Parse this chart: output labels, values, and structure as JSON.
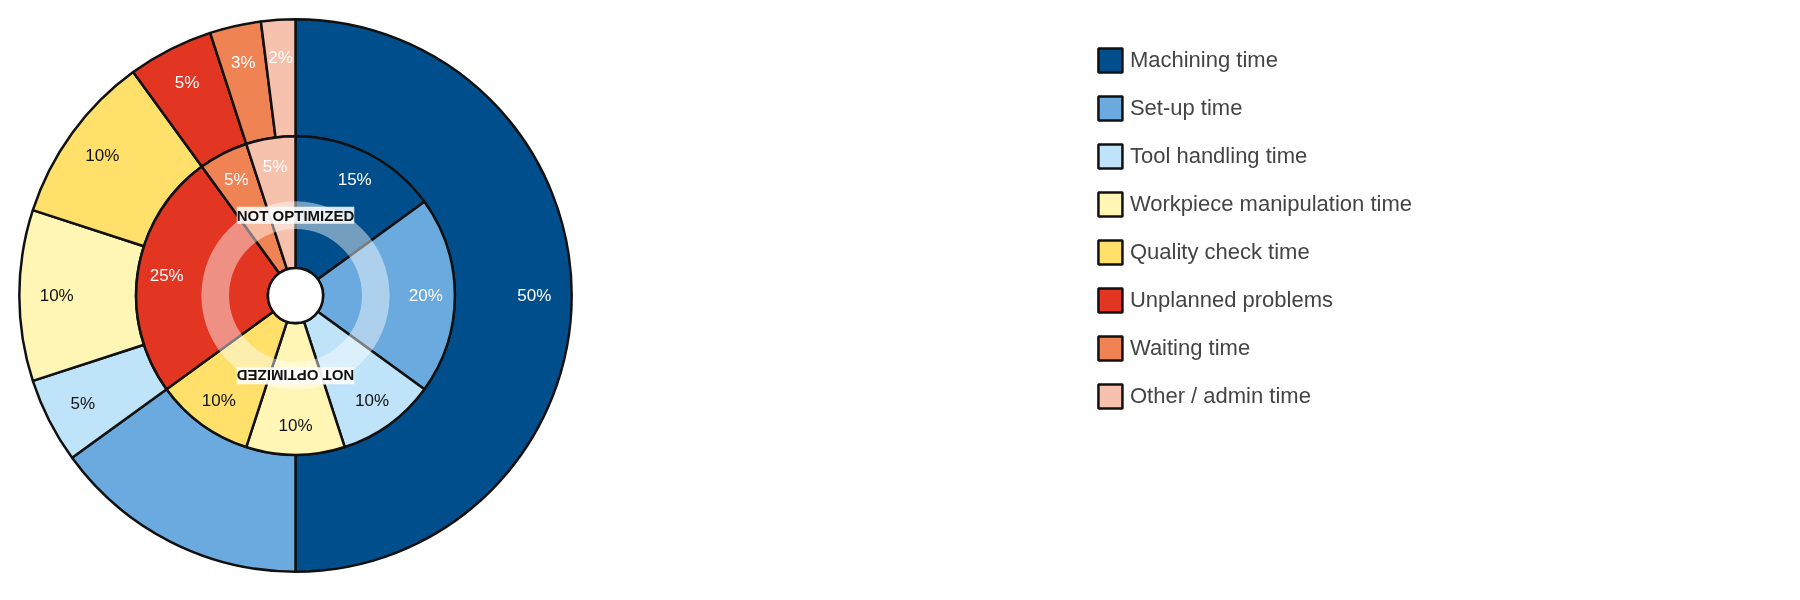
{
  "chart_data": {
    "type": "donut",
    "categories": [
      "Machining time",
      "Set-up time",
      "Tool handling time",
      "Workpiece manipulation time",
      "Quality check time",
      "Unplanned problems",
      "Waiting time",
      "Other / admin time"
    ],
    "colors": [
      "#004f8c",
      "#6aaade",
      "#bfe3f8",
      "#fff5b5",
      "#fee06a",
      "#e23522",
      "#ef8354",
      "#f6c2ae"
    ],
    "series": [
      {
        "values": [
          50,
          15,
          5,
          10,
          10,
          5,
          3,
          2
        ],
        "value_labels": [
          "50%",
          null,
          "5%",
          "10%",
          "10%",
          "5%",
          "3%",
          "2%"
        ]
      },
      {
        "name": "NOT OPTIMIZED",
        "values": [
          15,
          20,
          10,
          10,
          10,
          25,
          5,
          5
        ],
        "value_labels": [
          "15%",
          "20%",
          "10%",
          "10%",
          "10%",
          "25%",
          "5%",
          "5%"
        ]
      }
    ],
    "legend": "right"
  }
}
